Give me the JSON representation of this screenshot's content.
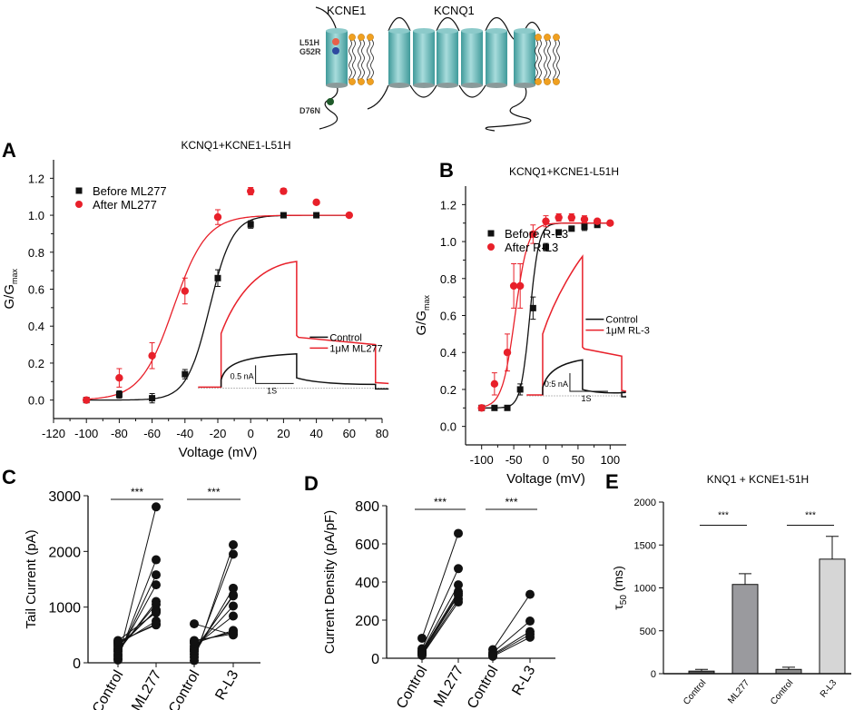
{
  "schematic": {
    "labels": {
      "kcne1": "KCNE1",
      "kcnq1": "KCNQ1",
      "mut1": "L51H",
      "mut2": "G52R",
      "mut3": "D76N"
    },
    "colors": {
      "helix": "#5fb8b8",
      "lipid_head": "#f0a020",
      "mut1": "#e8604a",
      "mut2": "#2f4aa0",
      "mut3": "#1f5a2a"
    }
  },
  "chart_data": [
    {
      "panel": "A",
      "type": "scatter",
      "title": "KCNQ1+KCNE1-L51H",
      "xlabel": "Voltage (mV)",
      "ylabel": "G/G",
      "ylabel_sub": "max",
      "xlim": [
        -120,
        80
      ],
      "ylim": [
        -0.1,
        1.3
      ],
      "xticks": [
        -120,
        -100,
        -80,
        -60,
        -40,
        -20,
        0,
        20,
        40,
        60,
        80
      ],
      "xtick_labels": [
        "-120",
        "-100",
        "-80",
        "-60",
        "-40",
        "-20",
        "0",
        "20",
        "40",
        "60",
        "80"
      ],
      "yticks": [
        0.0,
        0.2,
        0.4,
        0.6,
        0.8,
        1.0,
        1.2
      ],
      "ytick_labels": [
        "0.0",
        "0.2",
        "0.4",
        "0.6",
        "0.8",
        "1.0",
        "1.2"
      ],
      "legend_position": "top-left",
      "series": [
        {
          "name": "Before ML277",
          "marker": "square",
          "color": "#111111",
          "x": [
            -100,
            -80,
            -60,
            -40,
            -20,
            0,
            20,
            40
          ],
          "y": [
            0.0,
            0.03,
            0.01,
            0.14,
            0.66,
            0.95,
            1.0,
            1.0
          ],
          "err": [
            0.01,
            0.02,
            0.025,
            0.025,
            0.045,
            0.02,
            0.01,
            0.01
          ],
          "fit": {
            "v_half": -25,
            "k": 7
          }
        },
        {
          "name": "After ML277",
          "marker": "circle",
          "color": "#e8202a",
          "x": [
            -100,
            -80,
            -60,
            -40,
            -20,
            0,
            20,
            40,
            60
          ],
          "y": [
            0.0,
            0.12,
            0.24,
            0.59,
            0.99,
            1.13,
            1.13,
            1.07,
            1.0
          ],
          "err": [
            0.01,
            0.05,
            0.07,
            0.07,
            0.04,
            0.02,
            0.015,
            0.01,
            0.01
          ],
          "fit": {
            "v_half": -47,
            "k": 10
          }
        }
      ],
      "inset": {
        "legend": [
          "Control",
          "1μM ML277"
        ],
        "scale_current": "0.5 nA",
        "scale_time": "1S"
      }
    },
    {
      "panel": "B",
      "type": "scatter",
      "title": "KCNQ1+KCNE1-L51H",
      "xlabel": "Voltage (mV)",
      "ylabel": "G/G",
      "ylabel_sub": "max",
      "xlim": [
        -125,
        125
      ],
      "ylim": [
        -0.1,
        1.3
      ],
      "xticks": [
        -100,
        -50,
        0,
        50,
        100
      ],
      "xtick_labels": [
        "-100",
        "-50",
        "0",
        "50",
        "100"
      ],
      "yticks": [
        0.0,
        0.2,
        0.4,
        0.6,
        0.8,
        1.0,
        1.2
      ],
      "ytick_labels": [
        "0.0",
        "0.2",
        "0.4",
        "0.6",
        "0.8",
        "1.0",
        "1.2"
      ],
      "legend_position": "top-left",
      "series": [
        {
          "name": "Before R-L3",
          "marker": "square",
          "color": "#111111",
          "x": [
            -100,
            -80,
            -60,
            -40,
            -20,
            0,
            20,
            40,
            60,
            80
          ],
          "y": [
            0.1,
            0.1,
            0.1,
            0.2,
            0.64,
            0.97,
            1.05,
            1.07,
            1.08,
            1.09
          ],
          "err": [
            0.01,
            0.01,
            0.01,
            0.03,
            0.06,
            0.02,
            0.01,
            0.01,
            0.02,
            0.01
          ],
          "fit": {
            "v_half": -25,
            "k": 7,
            "base": 0.1,
            "top": 1.1
          }
        },
        {
          "name": "After R-L3",
          "marker": "circle",
          "color": "#e8202a",
          "x": [
            -100,
            -80,
            -60,
            -50,
            -40,
            -20,
            0,
            20,
            40,
            60,
            80,
            100
          ],
          "y": [
            0.1,
            0.23,
            0.4,
            0.76,
            0.76,
            1.04,
            1.11,
            1.13,
            1.13,
            1.12,
            1.11,
            1.1
          ],
          "err": [
            0.01,
            0.06,
            0.1,
            0.12,
            0.12,
            0.05,
            0.03,
            0.02,
            0.02,
            0.02,
            0.01,
            0.01
          ],
          "fit": {
            "v_half": -48,
            "k": 10,
            "base": 0.1,
            "top": 1.1
          }
        }
      ],
      "inset": {
        "legend": [
          "Control",
          "1μM RL-3"
        ],
        "scale_current": "0:5 nA",
        "scale_time": "1S"
      }
    },
    {
      "panel": "C",
      "type": "scatter",
      "title": "",
      "ylabel": "Tail Current (pA)",
      "ylim": [
        0,
        3000
      ],
      "yticks": [
        0,
        1000,
        2000,
        3000
      ],
      "ytick_labels": [
        "0",
        "1000",
        "2000",
        "3000"
      ],
      "categories": [
        "Control",
        "ML277",
        "Control",
        "R-L3"
      ],
      "significance": [
        "***",
        "***"
      ],
      "pairs": [
        {
          "group": "ML277",
          "before": [
            50,
            80,
            120,
            150,
            200,
            230,
            260,
            300,
            330,
            360,
            380,
            400
          ],
          "after": [
            2800,
            1850,
            1580,
            1400,
            1100,
            1050,
            950,
            930,
            750,
            700,
            680,
            900
          ]
        },
        {
          "group": "R-L3",
          "before": [
            40,
            100,
            150,
            200,
            230,
            260,
            300,
            350,
            380,
            400,
            700
          ],
          "after": [
            2120,
            1950,
            1340,
            1220,
            1200,
            1020,
            840,
            580,
            550,
            520,
            500
          ]
        }
      ]
    },
    {
      "panel": "D",
      "type": "scatter",
      "title": "",
      "ylabel": "Current Density (pA/pF)",
      "ylim": [
        0,
        800
      ],
      "yticks": [
        0,
        200,
        400,
        600,
        800
      ],
      "ytick_labels": [
        "0",
        "200",
        "400",
        "600",
        "800"
      ],
      "categories": [
        "Control",
        "ML277",
        "Control",
        "R-L3"
      ],
      "significance": [
        "***",
        "***"
      ],
      "pairs": [
        {
          "group": "ML277",
          "before": [
            105,
            50,
            40,
            35,
            30,
            25,
            20,
            15
          ],
          "after": [
            655,
            470,
            385,
            350,
            340,
            330,
            310,
            295
          ]
        },
        {
          "group": "R-L3",
          "before": [
            45,
            30,
            20,
            15,
            10
          ],
          "after": [
            335,
            195,
            140,
            125,
            110
          ]
        }
      ]
    },
    {
      "panel": "E",
      "type": "bar",
      "title": "KNQ1 + KCNE1-51H",
      "ylabel": "τ",
      "ylabel_sub": "50",
      "ylabel_unit": " (ms)",
      "ylim": [
        0,
        2000
      ],
      "yticks": [
        0,
        500,
        1000,
        1500,
        2000
      ],
      "ytick_labels": [
        "0",
        "500",
        "1000",
        "1500",
        "2000"
      ],
      "categories": [
        "Control",
        "ML277",
        "Control",
        "R-L3"
      ],
      "values": [
        30,
        1040,
        50,
        1335
      ],
      "errors": [
        20,
        125,
        25,
        265
      ],
      "bar_colors": [
        "#555555",
        "#9a9a9e",
        "#8a8a8a",
        "#d6d6d6"
      ],
      "significance": [
        "***",
        "***"
      ]
    }
  ]
}
